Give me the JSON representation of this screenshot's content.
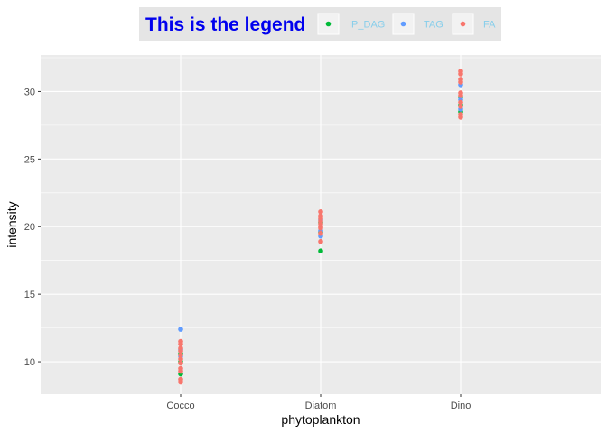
{
  "chart_data": {
    "type": "scatter",
    "title": "",
    "xlabel": "phytoplankton",
    "ylabel": "intensity",
    "categories": [
      "Cocco",
      "Diatom",
      "Dino"
    ],
    "ylim": [
      7.6,
      32.7
    ],
    "yticks": [
      10,
      15,
      20,
      25,
      30
    ],
    "grid": true,
    "legend": {
      "title": "This is the legend",
      "position": "top",
      "title_color": "#0000ee",
      "label_color": "#87ceeb",
      "background": "#e5e5e5"
    },
    "series": [
      {
        "name": "IP_DAG",
        "color": "#00ba38",
        "points": [
          {
            "x": "Cocco",
            "y": 9.1
          },
          {
            "x": "Cocco",
            "y": 10.0
          },
          {
            "x": "Cocco",
            "y": 10.6
          },
          {
            "x": "Diatom",
            "y": 18.2
          },
          {
            "x": "Diatom",
            "y": 19.6
          },
          {
            "x": "Diatom",
            "y": 20.3
          },
          {
            "x": "Dino",
            "y": 28.5
          },
          {
            "x": "Dino",
            "y": 29.0
          },
          {
            "x": "Dino",
            "y": 29.6
          }
        ]
      },
      {
        "name": "TAG",
        "color": "#619cff",
        "points": [
          {
            "x": "Cocco",
            "y": 12.4
          },
          {
            "x": "Cocco",
            "y": 10.9
          },
          {
            "x": "Cocco",
            "y": 10.4
          },
          {
            "x": "Diatom",
            "y": 19.3
          },
          {
            "x": "Diatom",
            "y": 19.7
          },
          {
            "x": "Diatom",
            "y": 20.5
          },
          {
            "x": "Dino",
            "y": 30.5
          },
          {
            "x": "Dino",
            "y": 29.4
          },
          {
            "x": "Dino",
            "y": 28.7
          }
        ]
      },
      {
        "name": "FA",
        "color": "#f8766d",
        "points": [
          {
            "x": "Cocco",
            "y": 8.5
          },
          {
            "x": "Cocco",
            "y": 8.7
          },
          {
            "x": "Cocco",
            "y": 9.3
          },
          {
            "x": "Cocco",
            "y": 9.5
          },
          {
            "x": "Cocco",
            "y": 9.9
          },
          {
            "x": "Cocco",
            "y": 10.2
          },
          {
            "x": "Cocco",
            "y": 10.5
          },
          {
            "x": "Cocco",
            "y": 10.8
          },
          {
            "x": "Cocco",
            "y": 11.0
          },
          {
            "x": "Cocco",
            "y": 11.3
          },
          {
            "x": "Cocco",
            "y": 11.5
          },
          {
            "x": "Diatom",
            "y": 18.9
          },
          {
            "x": "Diatom",
            "y": 19.5
          },
          {
            "x": "Diatom",
            "y": 19.9
          },
          {
            "x": "Diatom",
            "y": 20.0
          },
          {
            "x": "Diatom",
            "y": 20.2
          },
          {
            "x": "Diatom",
            "y": 20.4
          },
          {
            "x": "Diatom",
            "y": 20.6
          },
          {
            "x": "Diatom",
            "y": 20.8
          },
          {
            "x": "Diatom",
            "y": 21.1
          },
          {
            "x": "Dino",
            "y": 28.1
          },
          {
            "x": "Dino",
            "y": 28.3
          },
          {
            "x": "Dino",
            "y": 28.9
          },
          {
            "x": "Dino",
            "y": 29.2
          },
          {
            "x": "Dino",
            "y": 29.7
          },
          {
            "x": "Dino",
            "y": 29.9
          },
          {
            "x": "Dino",
            "y": 30.7
          },
          {
            "x": "Dino",
            "y": 30.9
          },
          {
            "x": "Dino",
            "y": 31.3
          },
          {
            "x": "Dino",
            "y": 31.5
          }
        ]
      }
    ]
  },
  "legend_order": [
    "IP_DAG",
    "TAG",
    "FA"
  ]
}
